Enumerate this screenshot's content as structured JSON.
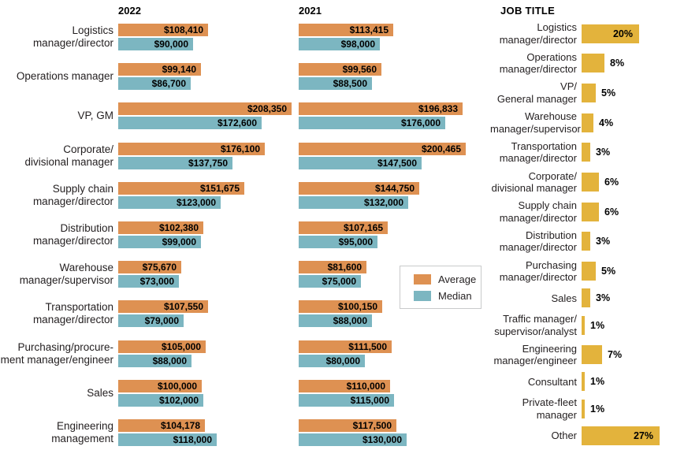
{
  "colors": {
    "average_bar": "#DE9152",
    "median_bar": "#7CB6C1",
    "job_title_bar": "#E3B33C",
    "text": "#231F20",
    "legend_border": "#C9CACB",
    "background": "#FFFFFF"
  },
  "chart_data": [
    {
      "type": "bar",
      "title": "",
      "orientation": "horizontal",
      "column_headers": [
        "2022",
        "2021"
      ],
      "legend": [
        "Average",
        "Median"
      ],
      "legend_position": "middle-right of 2021 column",
      "value_axis_max": 208350,
      "grid": false,
      "categories": [
        "Logistics\nmanager/director",
        "Operations manager",
        "VP, GM",
        "Corporate/\ndivisional manager",
        "Supply chain\nmanager/director",
        "Distribution\nmanager/director",
        "Warehouse\nmanager/supervisor",
        "Transportation\nmanager/director",
        "Purchasing/procure-\nment manager/engineer",
        "Sales",
        "Engineering\nmanagement"
      ],
      "series": [
        {
          "name": "2022 Average",
          "values": [
            108410,
            99140,
            208350,
            176100,
            151675,
            102380,
            75670,
            107550,
            105000,
            100000,
            104178
          ],
          "labels": [
            "$108,410",
            "$99,140",
            "$208,350",
            "$176,100",
            "$151,675",
            "$102,380",
            "$75,670",
            "$107,550",
            "$105,000",
            "$100,000",
            "$104,178"
          ]
        },
        {
          "name": "2022 Median",
          "values": [
            90000,
            86700,
            172600,
            137750,
            123000,
            99000,
            73000,
            79000,
            88000,
            102000,
            118000
          ],
          "labels": [
            "$90,000",
            "$86,700",
            "$172,600",
            "$137,750",
            "$123,000",
            "$99,000",
            "$73,000",
            "$79,000",
            "$88,000",
            "$102,000",
            "$118,000"
          ]
        },
        {
          "name": "2021 Average",
          "values": [
            113415,
            99560,
            196833,
            200465,
            144750,
            107165,
            81600,
            100150,
            111500,
            110000,
            117500
          ],
          "labels": [
            "$113,415",
            "$99,560",
            "$196,833",
            "$200,465",
            "$144,750",
            "$107,165",
            "$81,600",
            "$100,150",
            "$111,500",
            "$110,000",
            "$117,500"
          ]
        },
        {
          "name": "2021 Median",
          "values": [
            98000,
            88500,
            176000,
            147500,
            132000,
            95000,
            75000,
            88000,
            80000,
            115000,
            130000
          ],
          "labels": [
            "$98,000",
            "$88,500",
            "$176,000",
            "$147,500",
            "$132,000",
            "$95,000",
            "$75,000",
            "$88,000",
            "$80,000",
            "$115,000",
            "$130,000"
          ]
        }
      ]
    },
    {
      "type": "bar",
      "title": "JOB TITLE",
      "orientation": "horizontal",
      "value_axis_max": 27,
      "grid": false,
      "inside_label_threshold_pct": 20,
      "categories": [
        "Logistics\nmanager/director",
        "Operations\nmanager/director",
        "VP/\nGeneral manager",
        "Warehouse\nmanager/supervisor",
        "Transportation\nmanager/director",
        "Corporate/\ndivisional manager",
        "Supply chain\nmanager/director",
        "Distribution\nmanager/director",
        "Purchasing\nmanager/director",
        "Sales",
        "Traffic manager/\nsupervisor/analyst",
        "Engineering\nmanager/engineer",
        "Consultant",
        "Private-fleet\nmanager",
        "Other"
      ],
      "values": [
        20,
        8,
        5,
        4,
        3,
        6,
        6,
        3,
        5,
        3,
        1,
        7,
        1,
        1,
        27
      ],
      "labels": [
        "20%",
        "8%",
        "5%",
        "4%",
        "3%",
        "6%",
        "6%",
        "3%",
        "5%",
        "3%",
        "1%",
        "7%",
        "1%",
        "1%",
        "27%"
      ]
    }
  ]
}
